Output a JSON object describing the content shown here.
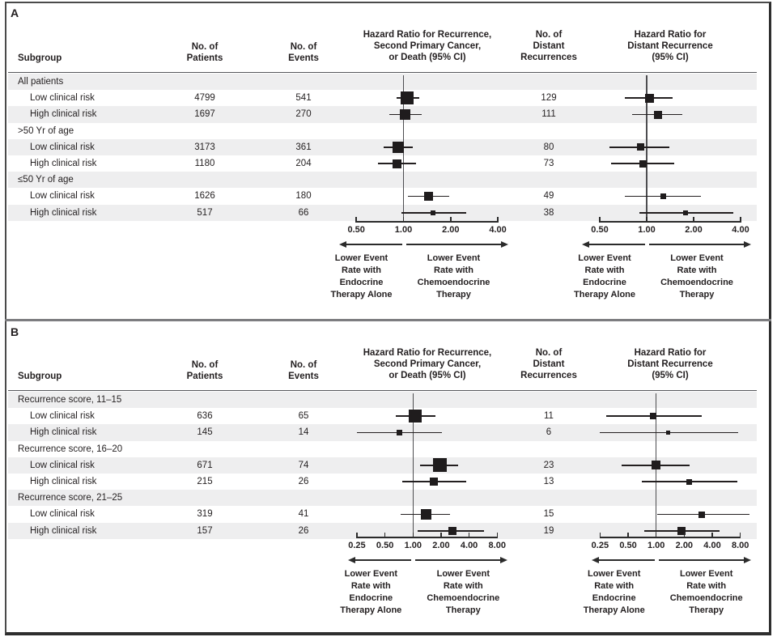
{
  "colors": {
    "text": "#231f20",
    "stripe": "#eeeeef",
    "marker": "#1f1c1d",
    "ci_line": "#231f20",
    "axis": "#2b2b2b",
    "reference_line": "#4d4d50",
    "frame": "#4a4a4a",
    "separator": "#7d7d80"
  },
  "labels": {
    "subgroup_header": "Subgroup",
    "patients_header": "No. of\nPatients",
    "events_header": "No. of\nEvents",
    "hr_recurrence_header": "Hazard Ratio for Recurrence,\nSecond Primary Cancer,\nor Death (95% CI)",
    "distant_header": "No. of\nDistant\nRecurrences",
    "hr_distant_header": "Hazard Ratio for\nDistant Recurrence\n(95% CI)",
    "arrow_left": "Lower Event\nRate with\nEndocrine\nTherapy Alone",
    "arrow_right": "Lower Event\nRate with\nChemoendocrine\nTherapy"
  },
  "chart_data": [
    {
      "type": "forest",
      "panel": "A",
      "x_scale": "log",
      "axis_ticks": [
        "0.50",
        "1.00",
        "2.00",
        "4.00"
      ],
      "axis_tick_values": [
        0.5,
        1,
        2,
        4
      ],
      "rows": [
        {
          "kind": "group",
          "label": "All patients"
        },
        {
          "kind": "data",
          "label": "Low clinical risk",
          "patients": "4799",
          "events": "541",
          "distant_recurrences": "129",
          "hr_recurrence": {
            "est": 1.06,
            "lo": 0.9,
            "hi": 1.26,
            "marker": 16
          },
          "hr_distant": {
            "est": 1.04,
            "lo": 0.72,
            "hi": 1.46,
            "marker": 11
          }
        },
        {
          "kind": "data",
          "label": "High clinical risk",
          "patients": "1697",
          "events": "270",
          "distant_recurrences": "111",
          "hr_recurrence": {
            "est": 1.03,
            "lo": 0.81,
            "hi": 1.31,
            "marker": 13
          },
          "hr_distant": {
            "est": 1.18,
            "lo": 0.81,
            "hi": 1.69,
            "marker": 10
          }
        },
        {
          "kind": "group",
          "label": ">50 Yr of age"
        },
        {
          "kind": "data",
          "label": "Low clinical risk",
          "patients": "3173",
          "events": "361",
          "distant_recurrences": "80",
          "hr_recurrence": {
            "est": 0.93,
            "lo": 0.75,
            "hi": 1.14,
            "marker": 14
          },
          "hr_distant": {
            "est": 0.91,
            "lo": 0.58,
            "hi": 1.4,
            "marker": 9
          }
        },
        {
          "kind": "data",
          "label": "High clinical risk",
          "patients": "1180",
          "events": "204",
          "distant_recurrences": "73",
          "hr_recurrence": {
            "est": 0.91,
            "lo": 0.69,
            "hi": 1.2,
            "marker": 11
          },
          "hr_distant": {
            "est": 0.95,
            "lo": 0.59,
            "hi": 1.51,
            "marker": 9
          }
        },
        {
          "kind": "group",
          "label": "≤50 Yr of age"
        },
        {
          "kind": "data",
          "label": "Low clinical risk",
          "patients": "1626",
          "events": "180",
          "distant_recurrences": "49",
          "hr_recurrence": {
            "est": 1.44,
            "lo": 1.07,
            "hi": 1.95,
            "marker": 11
          },
          "hr_distant": {
            "est": 1.27,
            "lo": 0.72,
            "hi": 2.23,
            "marker": 7
          }
        },
        {
          "kind": "data",
          "label": "High clinical risk",
          "patients": "517",
          "events": "66",
          "distant_recurrences": "38",
          "hr_recurrence": {
            "est": 1.55,
            "lo": 0.97,
            "hi": 2.52,
            "marker": 6
          },
          "hr_distant": {
            "est": 1.77,
            "lo": 0.9,
            "hi": 3.58,
            "marker": 6
          }
        }
      ]
    },
    {
      "type": "forest",
      "panel": "B",
      "x_scale": "log",
      "axis_ticks": [
        "0.25",
        "0.50",
        "1.00",
        "2.00",
        "4.00",
        "8.00"
      ],
      "axis_tick_values": [
        0.25,
        0.5,
        1,
        2,
        4,
        8
      ],
      "rows": [
        {
          "kind": "group",
          "label": "Recurrence score, 11–15"
        },
        {
          "kind": "data",
          "label": "Low clinical risk",
          "patients": "636",
          "events": "65",
          "distant_recurrences": "11",
          "hr_recurrence": {
            "est": 1.05,
            "lo": 0.65,
            "hi": 1.75,
            "marker": 16
          },
          "hr_distant": {
            "est": 0.92,
            "lo": 0.29,
            "hi": 3.07,
            "marker": 8
          }
        },
        {
          "kind": "data",
          "label": "High clinical risk",
          "patients": "145",
          "events": "14",
          "distant_recurrences": "6",
          "hr_recurrence": {
            "est": 0.72,
            "lo": 0.25,
            "hi": 2.03,
            "marker": 7
          },
          "hr_distant": {
            "est": 1.35,
            "lo": 0.25,
            "hi": 7.64,
            "marker": 5
          }
        },
        {
          "kind": "group",
          "label": "Recurrence score, 16–20"
        },
        {
          "kind": "data",
          "label": "Low clinical risk",
          "patients": "671",
          "events": "74",
          "distant_recurrences": "23",
          "hr_recurrence": {
            "est": 1.93,
            "lo": 1.18,
            "hi": 3.07,
            "marker": 17
          },
          "hr_distant": {
            "est": 1.0,
            "lo": 0.43,
            "hi": 2.28,
            "marker": 11
          }
        },
        {
          "kind": "data",
          "label": "High clinical risk",
          "patients": "215",
          "events": "26",
          "distant_recurrences": "13",
          "hr_recurrence": {
            "est": 1.67,
            "lo": 0.77,
            "hi": 3.74,
            "marker": 10
          },
          "hr_distant": {
            "est": 2.28,
            "lo": 0.7,
            "hi": 7.5,
            "marker": 7
          }
        },
        {
          "kind": "group",
          "label": "Recurrence score, 21–25"
        },
        {
          "kind": "data",
          "label": "Low clinical risk",
          "patients": "319",
          "events": "41",
          "distant_recurrences": "15",
          "hr_recurrence": {
            "est": 1.39,
            "lo": 0.73,
            "hi": 2.49,
            "marker": 13
          },
          "hr_distant": {
            "est": 3.11,
            "lo": 1.02,
            "hi": 10.0,
            "marker": 8
          }
        },
        {
          "kind": "data",
          "label": "High clinical risk",
          "patients": "157",
          "events": "26",
          "distant_recurrences": "19",
          "hr_recurrence": {
            "est": 2.65,
            "lo": 1.13,
            "hi": 5.75,
            "marker": 10
          },
          "hr_distant": {
            "est": 1.87,
            "lo": 0.74,
            "hi": 4.78,
            "marker": 10
          }
        }
      ]
    }
  ]
}
